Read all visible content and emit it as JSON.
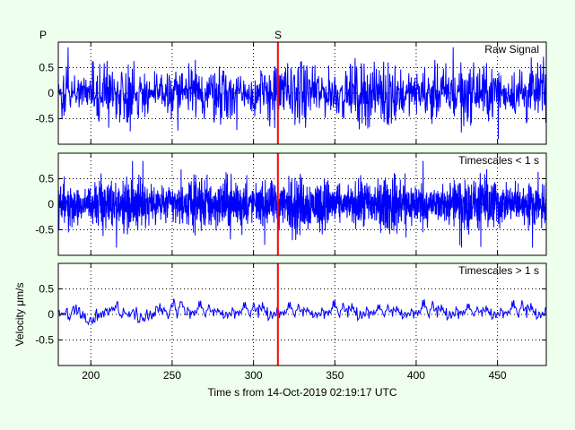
{
  "chart_data": {
    "type": "line",
    "xlabel": "Time s from 14-Oct-2019 02:19:17 UTC",
    "ylabel": "Velocity μm/s",
    "xlim": [
      180,
      480
    ],
    "xticks": [
      200,
      250,
      300,
      350,
      400,
      450
    ],
    "xtick_labels": [
      "200",
      "250",
      "300",
      "350",
      "400",
      "450"
    ],
    "ylim": [
      -1,
      1
    ],
    "yticks": [
      -0.5,
      0,
      0.5
    ],
    "ytick_labels": [
      "-0.5",
      "0",
      "0.5"
    ],
    "grid": true,
    "markers": [
      {
        "label": "P",
        "x": 180,
        "color": "#ff0000",
        "drawn_line": false
      },
      {
        "label": "S",
        "x": 315,
        "color": "#ff0000",
        "drawn_line": true
      }
    ],
    "panels": [
      {
        "title": "Raw Signal",
        "series_color": "#0000ff",
        "typical_amplitude": 0.3,
        "peak_amplitude": 0.9,
        "samples": 1200,
        "seed": 11
      },
      {
        "title": "Timescales < 1 s",
        "series_color": "#0000ff",
        "typical_amplitude": 0.25,
        "peak_amplitude": 0.85,
        "samples": 2400,
        "seed": 23
      },
      {
        "title": "Timescales > 1 s",
        "series_color": "#0000ff",
        "typical_amplitude": 0.15,
        "peak_amplitude": 0.5,
        "samples": 600,
        "seed": 37
      }
    ]
  }
}
